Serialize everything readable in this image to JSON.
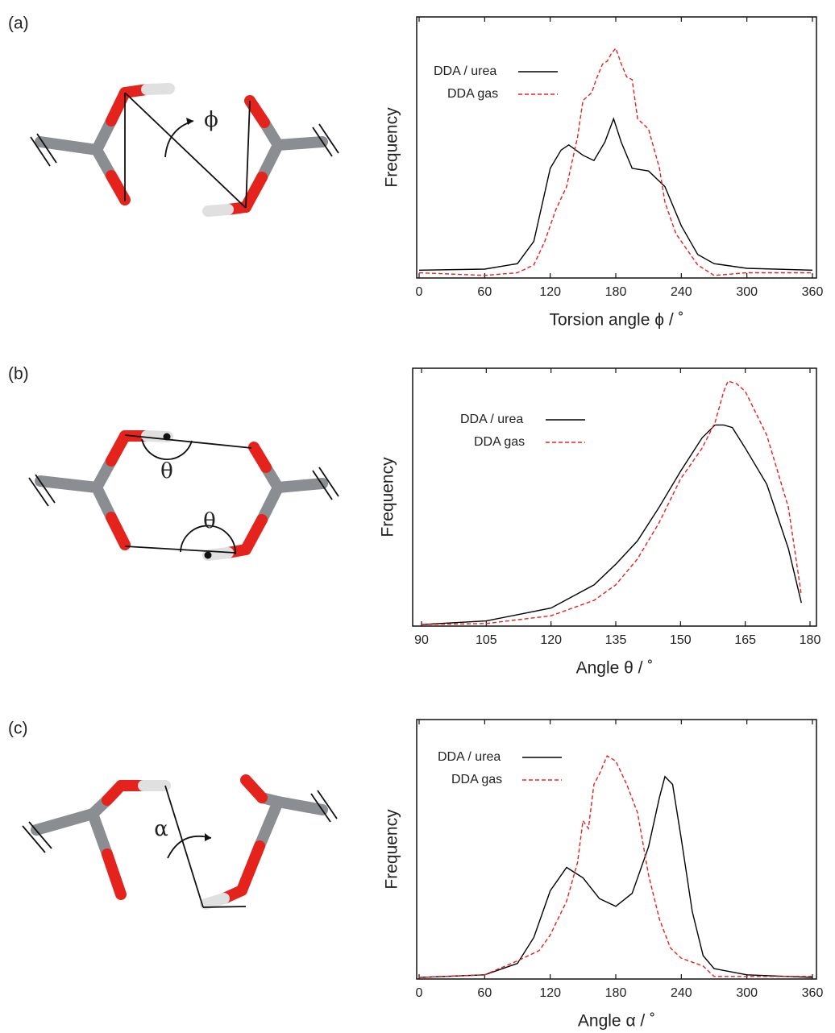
{
  "panels": [
    {
      "label": "(a)",
      "symbols": [
        "ϕ"
      ]
    },
    {
      "label": "(b)",
      "symbols": [
        "θ",
        "θ"
      ]
    },
    {
      "label": "(c)",
      "symbols": [
        "α"
      ]
    }
  ],
  "chart_data": [
    {
      "type": "line",
      "xlabel": "Torsion angle ϕ / ˚",
      "ylabel": "Frequency",
      "xlim": [
        0,
        360
      ],
      "ylim": [
        0,
        100
      ],
      "xticks": [
        0,
        60,
        120,
        180,
        240,
        300,
        360
      ],
      "legend": "upper left",
      "series": [
        {
          "name": "DDA / urea",
          "color": "#000000",
          "style": "solid",
          "x": [
            0,
            60,
            90,
            105,
            120,
            130,
            137,
            150,
            160,
            170,
            178,
            185,
            195,
            210,
            225,
            240,
            255,
            270,
            300,
            360
          ],
          "values": [
            3,
            3.4,
            5.5,
            14,
            42,
            49,
            51,
            47,
            45,
            52,
            61,
            52,
            42,
            41,
            35,
            20,
            9,
            5.5,
            3.7,
            3
          ]
        },
        {
          "name": "DDA gas",
          "color": "#e8201e",
          "style": "dashed",
          "x": [
            0,
            60,
            90,
            105,
            115,
            125,
            135,
            145,
            150,
            158,
            162,
            168,
            172,
            176,
            180,
            185,
            190,
            195,
            200,
            210,
            220,
            225,
            235,
            245,
            255,
            270,
            300,
            360
          ],
          "values": [
            2,
            1,
            2,
            5,
            14,
            26,
            35,
            54,
            68,
            71,
            76,
            82,
            83,
            86,
            88,
            82,
            77,
            76,
            61,
            57,
            42,
            29,
            17,
            11,
            5,
            1,
            2,
            2
          ]
        }
      ]
    },
    {
      "type": "line",
      "xlabel": "Angle θ / ˚",
      "ylabel": "Frequency",
      "xlim": [
        90,
        180
      ],
      "ylim": [
        0,
        100
      ],
      "xticks": [
        90,
        105,
        120,
        135,
        150,
        165,
        180
      ],
      "legend": "upper left",
      "series": [
        {
          "name": "DDA / urea",
          "color": "#000000",
          "style": "solid",
          "x": [
            90,
            105,
            120,
            130,
            135,
            140,
            145,
            150,
            155,
            158,
            160,
            162,
            165,
            170,
            175,
            178
          ],
          "values": [
            0.6,
            2,
            7,
            16,
            24,
            33,
            46,
            60,
            73,
            78,
            78,
            77,
            69,
            55,
            30,
            9
          ]
        },
        {
          "name": "DDA gas",
          "color": "#e8201e",
          "style": "dashed",
          "x": [
            90,
            105,
            120,
            130,
            135,
            140,
            145,
            150,
            155,
            158,
            160,
            161,
            163,
            165,
            170,
            175,
            178
          ],
          "values": [
            0.6,
            1,
            4,
            10,
            16,
            26,
            40,
            57,
            69,
            79,
            91,
            95,
            94,
            91,
            74,
            46,
            12
          ]
        }
      ]
    },
    {
      "type": "line",
      "xlabel": "Angle α / ˚",
      "ylabel": "Frequency",
      "xlim": [
        0,
        360
      ],
      "ylim": [
        0,
        100
      ],
      "xticks": [
        0,
        60,
        120,
        180,
        240,
        300,
        360
      ],
      "legend": "upper left",
      "series": [
        {
          "name": "DDA / urea",
          "color": "#000000",
          "style": "solid",
          "x": [
            0,
            60,
            90,
            105,
            120,
            135,
            150,
            165,
            180,
            195,
            210,
            220,
            225,
            232,
            240,
            250,
            260,
            270,
            300,
            360
          ],
          "values": [
            0.6,
            1.6,
            6,
            16,
            34,
            43,
            39,
            31,
            28,
            33,
            51,
            70,
            78,
            75,
            54,
            26,
            9,
            4,
            1.6,
            0.6
          ]
        },
        {
          "name": "DDA gas",
          "color": "#e8201e",
          "style": "dashed",
          "x": [
            0,
            60,
            90,
            110,
            120,
            135,
            145,
            150,
            155,
            160,
            165,
            172,
            180,
            190,
            200,
            210,
            220,
            230,
            240,
            260,
            270,
            360
          ],
          "values": [
            0.6,
            1.6,
            7,
            11,
            17,
            30,
            45,
            61,
            58,
            75,
            79,
            86,
            84,
            75,
            64,
            40,
            23,
            12,
            8,
            5,
            1,
            1
          ]
        }
      ]
    }
  ]
}
